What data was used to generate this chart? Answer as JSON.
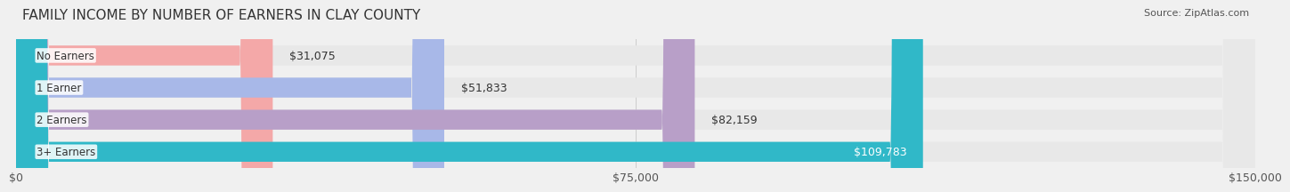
{
  "title": "FAMILY INCOME BY NUMBER OF EARNERS IN CLAY COUNTY",
  "source": "Source: ZipAtlas.com",
  "categories": [
    "No Earners",
    "1 Earner",
    "2 Earners",
    "3+ Earners"
  ],
  "values": [
    31075,
    51833,
    82159,
    109783
  ],
  "bar_colors": [
    "#f4a8a8",
    "#a8b8e8",
    "#b89fc8",
    "#30b8c8"
  ],
  "label_colors": [
    "#555555",
    "#555555",
    "#555555",
    "#ffffff"
  ],
  "max_value": 150000,
  "x_ticks": [
    0,
    75000,
    150000
  ],
  "x_tick_labels": [
    "$0",
    "$75,000",
    "$150,000"
  ],
  "background_color": "#f0f0f0",
  "bar_background_color": "#e8e8e8",
  "title_fontsize": 11,
  "source_fontsize": 8,
  "label_fontsize": 9,
  "tick_fontsize": 9,
  "category_fontsize": 8.5
}
